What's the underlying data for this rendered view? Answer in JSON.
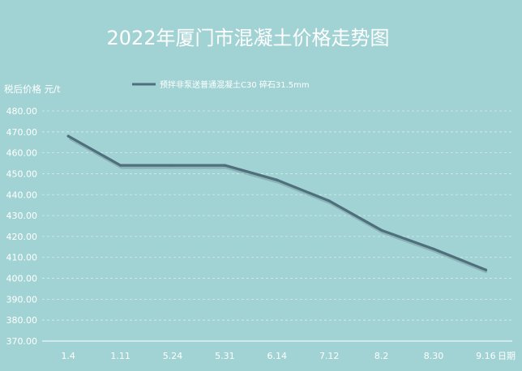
{
  "chart_data": {
    "type": "line",
    "title": "2022年厦门市混凝土价格走势图",
    "ylabel": "税后价格 元/t",
    "xlabel": "日期",
    "categories": [
      "1.4",
      "1.11",
      "5.24",
      "5.31",
      "6.14",
      "7.12",
      "8.2",
      "8.30",
      "9.16"
    ],
    "series": [
      {
        "name": "预拌非泵送普通混凝土C30  碎石31.5mm",
        "values": [
          468,
          454,
          454,
          454,
          447,
          437,
          423,
          414,
          404
        ]
      }
    ],
    "ylim": [
      370,
      480
    ],
    "yticks": [
      "370.00",
      "380.00",
      "390.00",
      "400.00",
      "410.00",
      "420.00",
      "430.00",
      "440.00",
      "450.00",
      "460.00",
      "470.00",
      "480.00"
    ],
    "grid": "horizontal",
    "legend": "top-center",
    "colors": {
      "background": "#a2d3d4",
      "line": "#4e6f7b",
      "text": "#ffffff",
      "grid": "#d6ecec"
    }
  }
}
